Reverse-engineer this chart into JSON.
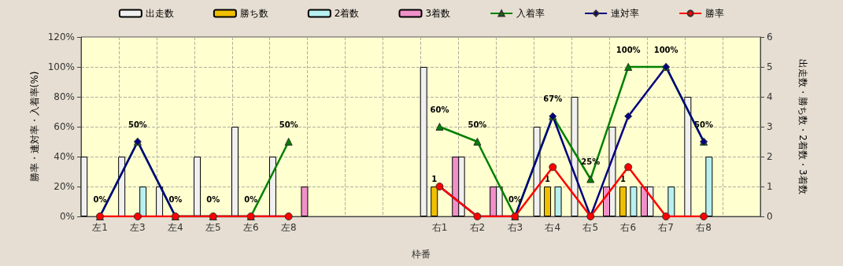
{
  "chart_data": {
    "type": "bar",
    "xlabel": "枠番",
    "ylabel": "勝率・連対率・入着率(%)",
    "y2label": "出走数・勝ち数・2着数・3着数",
    "categories": [
      "左1",
      "左3",
      "左4",
      "左5",
      "左6",
      "左8",
      null,
      null,
      null,
      "右1",
      "右2",
      "右3",
      "右4",
      "右5",
      "右6",
      "右7",
      "右8",
      null
    ],
    "series": [
      {
        "name": "出走数",
        "axis": "y2",
        "color": "#f0f0f0",
        "values": [
          2,
          2,
          1,
          2,
          3,
          2,
          null,
          null,
          null,
          5,
          2,
          1,
          3,
          4,
          3,
          1,
          4,
          null
        ]
      },
      {
        "name": "勝ち数",
        "axis": "y2",
        "color": "#f0c000",
        "values": [
          0,
          0,
          0,
          0,
          0,
          0,
          null,
          null,
          null,
          1,
          0,
          0,
          1,
          0,
          1,
          0,
          0,
          null
        ],
        "value_labels": [
          null,
          null,
          null,
          null,
          null,
          null,
          null,
          null,
          null,
          "1",
          null,
          null,
          "1",
          null,
          "1",
          null,
          null,
          null
        ]
      },
      {
        "name": "2着数",
        "axis": "y2",
        "color": "#b8f0f0",
        "values": [
          0,
          1,
          0,
          0,
          0,
          0,
          null,
          null,
          null,
          0,
          0,
          0,
          1,
          0,
          1,
          1,
          2,
          null
        ]
      },
      {
        "name": "3着数",
        "axis": "y2",
        "color": "#f090c8",
        "values": [
          0,
          0,
          0,
          0,
          0,
          1,
          null,
          null,
          null,
          2,
          1,
          0,
          0,
          1,
          1,
          0,
          0,
          null
        ]
      },
      {
        "name": "入着率",
        "type": "line",
        "marker": "triangle",
        "color": "#008000",
        "values": [
          0,
          50,
          0,
          0,
          0,
          50,
          null,
          null,
          null,
          60,
          50,
          0,
          67,
          25,
          100,
          100,
          50,
          null
        ],
        "value_labels": [
          "0%",
          "50%",
          "0%",
          "0%",
          "0%",
          "50%",
          null,
          null,
          null,
          "60%",
          "50%",
          "0%",
          "67%",
          "25%",
          "100%",
          "100%",
          "50%",
          null
        ]
      },
      {
        "name": "連対率",
        "type": "line",
        "marker": "diamond",
        "color": "#000080",
        "values": [
          0,
          50,
          0,
          0,
          0,
          0,
          null,
          null,
          null,
          20,
          0,
          0,
          67,
          0,
          67,
          100,
          50,
          null
        ]
      },
      {
        "name": "勝率",
        "type": "line",
        "marker": "circle",
        "color": "#ff0000",
        "values": [
          0,
          0,
          0,
          0,
          0,
          0,
          null,
          null,
          null,
          20,
          0,
          0,
          33,
          0,
          33,
          0,
          0,
          null
        ]
      }
    ],
    "ylim": [
      0,
      120
    ],
    "yticks": [
      {
        "value": 0,
        "label": "0%"
      },
      {
        "value": 20,
        "label": "20%"
      },
      {
        "value": 40,
        "label": "40%"
      },
      {
        "value": 60,
        "label": "60%"
      },
      {
        "value": 80,
        "label": "80%"
      },
      {
        "value": 100,
        "label": "100%"
      },
      {
        "value": 120,
        "label": "120%"
      }
    ],
    "y2lim": [
      0,
      6
    ],
    "y2ticks": [
      0,
      1,
      2,
      3,
      4,
      5,
      6
    ],
    "grid": true,
    "legend": "top"
  }
}
